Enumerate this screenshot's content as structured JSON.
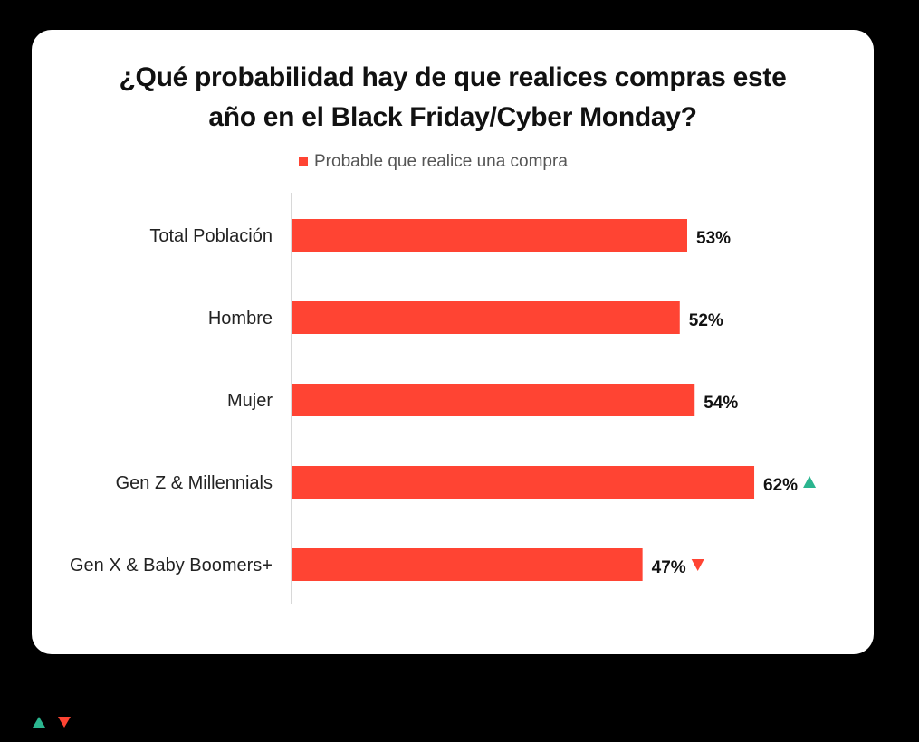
{
  "colors": {
    "bar": "#ff4433",
    "up": "#2bb58f",
    "down": "#ff4433",
    "axis": "#cccccc"
  },
  "chart_data": {
    "type": "bar",
    "orientation": "horizontal",
    "title_line1": "¿Qué probabilidad hay de que realices compras este",
    "title_line2": "año en el  Black Friday/Cyber Monday?",
    "legend": "Probable que realice una compra",
    "categories": [
      "Total Población",
      "Hombre",
      "Mujer",
      "Gen Z & Millennials",
      "Gen X & Baby Boomers+"
    ],
    "values": [
      53,
      52,
      54,
      62,
      47
    ],
    "value_labels": [
      "53%",
      "52%",
      "54%",
      "62%",
      "47%"
    ],
    "markers": [
      "",
      "",
      "",
      "up",
      "down"
    ],
    "series": [
      {
        "name": "Probable que realice una compra",
        "values": [
          53,
          52,
          54,
          62,
          47
        ]
      }
    ],
    "xlim": [
      0,
      100
    ],
    "grid": false,
    "legend_position": "top"
  },
  "footer_markers": [
    "up-triangle-icon",
    "down-triangle-icon"
  ]
}
